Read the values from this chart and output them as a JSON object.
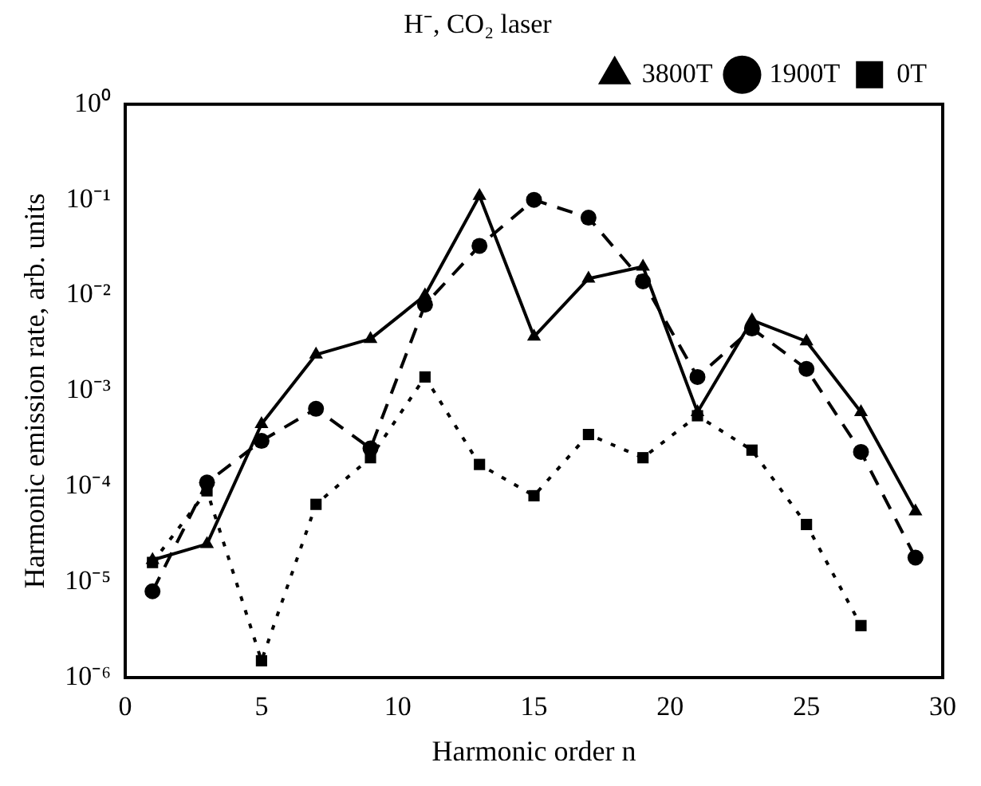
{
  "chart_data": {
    "type": "line",
    "title": "H⁻, CO₂ laser",
    "xlabel": "Harmonic order n",
    "ylabel": "Harmonic emission rate, arb. units",
    "x": [
      1,
      3,
      5,
      7,
      9,
      11,
      13,
      15,
      17,
      19,
      21,
      23,
      25,
      27,
      29
    ],
    "series": [
      {
        "name": "0T",
        "color": "#000000",
        "marker": "square",
        "line_style": "dotted",
        "values": [
          1.6e-05,
          9e-05,
          1.5e-06,
          6.5e-05,
          0.0002,
          0.0014,
          0.00017,
          8e-05,
          0.00035,
          0.0002,
          0.00055,
          0.00024,
          4e-05,
          3.5e-06,
          null
        ]
      },
      {
        "name": "1900T",
        "color": "#000000",
        "marker": "circle",
        "line_style": "dashed",
        "values": [
          8e-06,
          0.00011,
          0.0003,
          0.00065,
          0.00025,
          0.008,
          0.033,
          0.1,
          0.065,
          0.014,
          0.0014,
          0.0045,
          0.0017,
          0.00023,
          1.8e-05
        ]
      },
      {
        "name": "3800T",
        "color": "#000000",
        "marker": "triangle",
        "line_style": "solid",
        "values": [
          1.7e-05,
          2.5e-05,
          0.00045,
          0.0024,
          0.0035,
          0.01,
          0.11,
          0.0037,
          0.015,
          0.02,
          0.0006,
          0.0055,
          0.0033,
          0.0006,
          5.5e-05
        ]
      }
    ],
    "xlim": [
      0,
      30
    ],
    "xticks": [
      0,
      5,
      10,
      15,
      20,
      25,
      30
    ],
    "log": "y",
    "ylim": [
      1e-06,
      1
    ],
    "yticks": [
      {
        "value": 1e-06,
        "label": "10⁻⁶"
      },
      {
        "value": 1e-05,
        "label": "10⁻⁵"
      },
      {
        "value": 0.0001,
        "label": "10⁻⁴"
      },
      {
        "value": 0.001,
        "label": "10⁻³"
      },
      {
        "value": 0.01,
        "label": "10⁻²"
      },
      {
        "value": 0.1,
        "label": "10⁻¹"
      },
      {
        "value": 1,
        "label": "10⁰"
      }
    ],
    "grid": false,
    "legend": "top right"
  }
}
